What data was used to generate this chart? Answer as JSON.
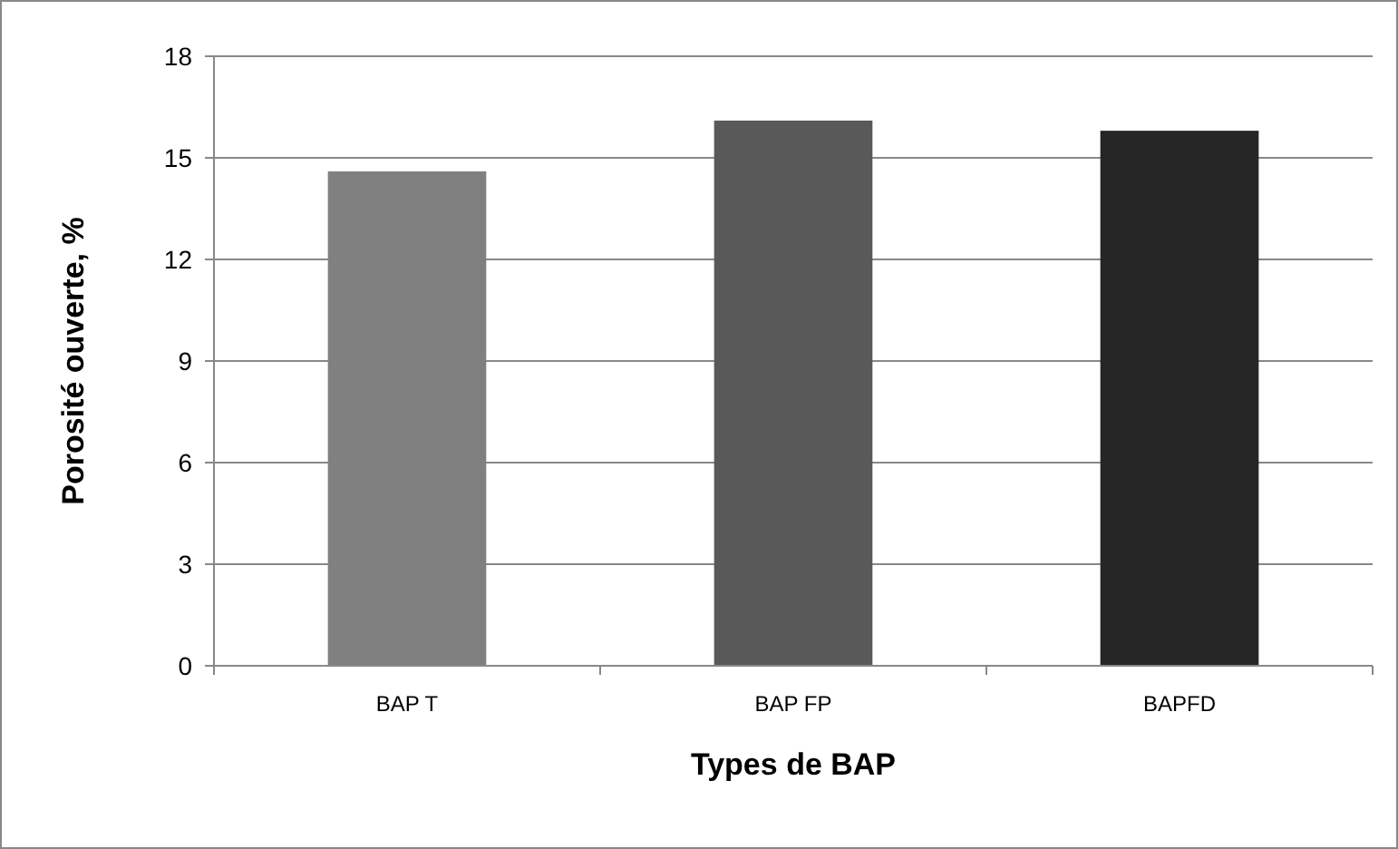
{
  "chart_data": {
    "type": "bar",
    "xlabel": "Types de BAP",
    "ylabel": "Porosité ouverte, %",
    "categories": [
      "BAP T",
      "BAP FP",
      "BAPFD"
    ],
    "values": [
      14.6,
      16.1,
      15.8
    ],
    "colors": [
      "#808080",
      "#595959",
      "#262626"
    ],
    "ylim": [
      0,
      18
    ],
    "yticks": [
      0,
      3,
      6,
      9,
      12,
      15,
      18
    ],
    "grid": "y"
  }
}
